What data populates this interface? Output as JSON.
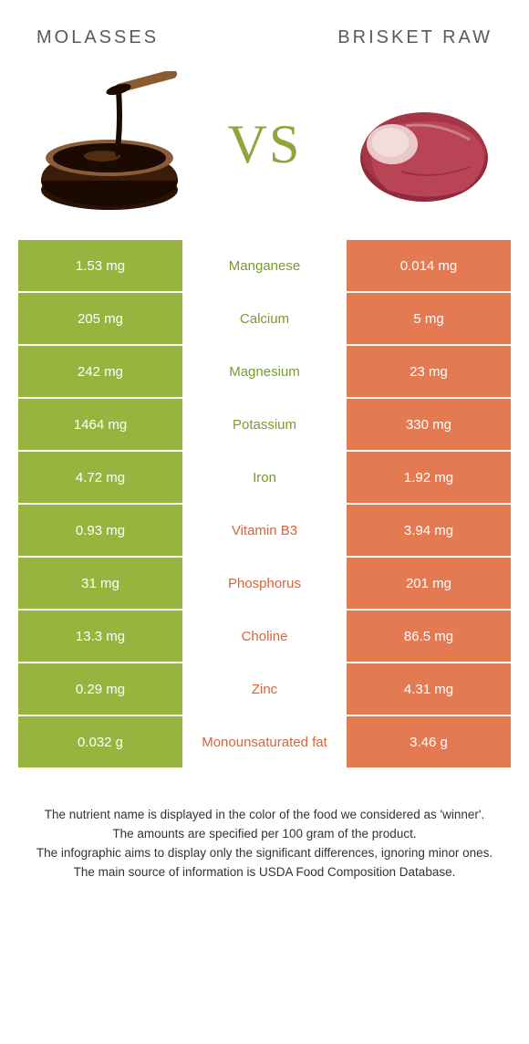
{
  "colors": {
    "left_bg": "#97b43f",
    "right_bg": "#e47a52",
    "left_winner_text": "#7a9b2f",
    "right_winner_text": "#d8643a",
    "title_text": "#5a5a5a",
    "vs_text": "#8fa63f",
    "cell_text": "#ffffff",
    "body_text": "#333333"
  },
  "left_food": {
    "title": "MOLASSES"
  },
  "right_food": {
    "title": "BRISKET RAW"
  },
  "vs_label": "VS",
  "rows": [
    {
      "left": "1.53 mg",
      "nutrient": "Manganese",
      "right": "0.014 mg",
      "winner": "left"
    },
    {
      "left": "205 mg",
      "nutrient": "Calcium",
      "right": "5 mg",
      "winner": "left"
    },
    {
      "left": "242 mg",
      "nutrient": "Magnesium",
      "right": "23 mg",
      "winner": "left"
    },
    {
      "left": "1464 mg",
      "nutrient": "Potassium",
      "right": "330 mg",
      "winner": "left"
    },
    {
      "left": "4.72 mg",
      "nutrient": "Iron",
      "right": "1.92 mg",
      "winner": "left"
    },
    {
      "left": "0.93 mg",
      "nutrient": "Vitamin B3",
      "right": "3.94 mg",
      "winner": "right"
    },
    {
      "left": "31 mg",
      "nutrient": "Phosphorus",
      "right": "201 mg",
      "winner": "right"
    },
    {
      "left": "13.3 mg",
      "nutrient": "Choline",
      "right": "86.5 mg",
      "winner": "right"
    },
    {
      "left": "0.29 mg",
      "nutrient": "Zinc",
      "right": "4.31 mg",
      "winner": "right"
    },
    {
      "left": "0.032 g",
      "nutrient": "Monounsaturated fat",
      "right": "3.46 g",
      "winner": "right"
    }
  ],
  "footnotes": [
    "The nutrient name is displayed in the color of the food we considered as 'winner'.",
    "The amounts are specified per 100 gram of the product.",
    "The infographic aims to display only the significant differences, ignoring minor ones.",
    "The main source of information is USDA Food Composition Database."
  ]
}
